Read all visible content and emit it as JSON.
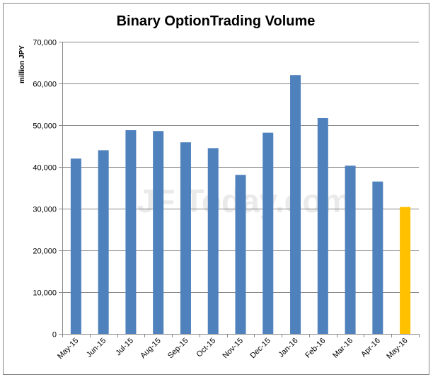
{
  "chart_data": {
    "type": "bar",
    "title": "Binary OptionTrading Volume",
    "ylabel": "million JPY",
    "xlabel": "",
    "watermark": "JF Today.com",
    "ylim": [
      0,
      70000
    ],
    "yticks": [
      0,
      10000,
      20000,
      30000,
      40000,
      50000,
      60000,
      70000
    ],
    "ytick_labels": [
      "0",
      "10,000",
      "20,000",
      "30,000",
      "40,000",
      "50,000",
      "60,000",
      "70,000"
    ],
    "grid": true,
    "legend": "none",
    "categories": [
      "May-15",
      "Jun-15",
      "Jul-15",
      "Aug-15",
      "Sep-15",
      "Oct-15",
      "Nov-15",
      "Dec-15",
      "Jan-16",
      "Feb-16",
      "Mar-16",
      "Apr-16",
      "May-16"
    ],
    "values": [
      42000,
      44000,
      48800,
      48600,
      45900,
      44500,
      38100,
      48200,
      62000,
      51700,
      40300,
      36500,
      30400
    ],
    "colors": {
      "bar": "#4f81bd",
      "highlight": "#ffc000",
      "grid": "#868686",
      "axis": "#868686",
      "border": "#868686",
      "text": "#000000",
      "watermark": "#d9d9d9"
    },
    "highlight_index": 12
  }
}
